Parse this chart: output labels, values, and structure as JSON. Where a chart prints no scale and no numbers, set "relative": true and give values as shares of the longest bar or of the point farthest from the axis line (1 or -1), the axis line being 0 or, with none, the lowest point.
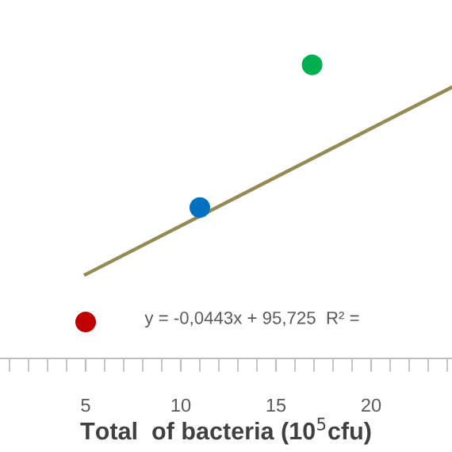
{
  "chart_data": {
    "type": "scatter",
    "relative": true,
    "xlabel": "Total  of bacteria (10$^{5}$cfu)",
    "xlim": [
      0.5,
      24.25
    ],
    "xticks": [
      5,
      10,
      15,
      20
    ],
    "grid": false,
    "annotations": [
      "y = -0,0443x + 95,725  R² = "
    ],
    "series": [
      {
        "x": [
          5.0,
          11.0,
          16.9
        ],
        "values": [
          0.124,
          0.514,
          1
        ],
        "colors": [
          "#c00000",
          "#0070c0",
          "#00b050"
        ],
        "marker": "circle"
      },
      {
        "type": "line",
        "x": [
          5,
          24.25
        ],
        "values": [
          0.286,
          0.924
        ],
        "color": "#948a54",
        "line_style": "solid"
      }
    ]
  }
}
